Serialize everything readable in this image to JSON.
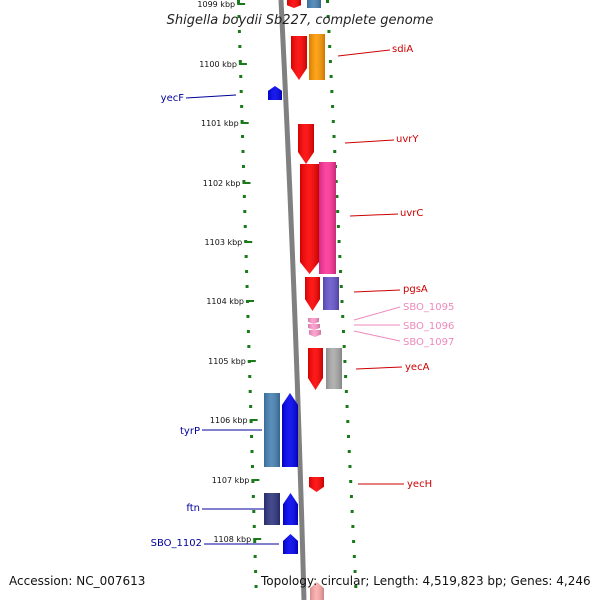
{
  "title": "Shigella boydii Sb227, complete genome",
  "accession": "Accession: NC_007613",
  "topology": "Topology: circular; Length: 4,519,823 bp; Genes: 4,246",
  "colors": {
    "backbone": "#808080",
    "tick": "#1a7a1a",
    "red": "#ff0000",
    "orange": "#ff9900",
    "pink": "#ff3399",
    "lightpink": "#ff99cc",
    "purple": "#6655cc",
    "gray": "#aaaaaa",
    "blue": "#0000ee",
    "steelblue": "#4682b4",
    "navy": "#2e3580",
    "redLabel": "#cc0000",
    "blueLabel": "#000099",
    "pinkLabel": "#ee88bb"
  },
  "kbp_ticks": [
    "1099 kbp",
    "1100 kbp",
    "1101 kbp",
    "1102 kbp",
    "1103 kbp",
    "1104 kbp",
    "1105 kbp",
    "1106 kbp",
    "1107 kbp",
    "1108 kbp"
  ],
  "genes": [
    {
      "name": "sdiA",
      "strand": "+",
      "color": "red"
    },
    {
      "name": "yecF",
      "strand": "-",
      "color": "blue"
    },
    {
      "name": "uvrY",
      "strand": "+",
      "color": "red"
    },
    {
      "name": "uvrC",
      "strand": "+",
      "color": "red"
    },
    {
      "name": "pgsA",
      "strand": "+",
      "color": "red"
    },
    {
      "name": "SBO_1095",
      "strand": "+",
      "color": "lightpink"
    },
    {
      "name": "SBO_1096",
      "strand": "+",
      "color": "lightpink"
    },
    {
      "name": "SBO_1097",
      "strand": "+",
      "color": "lightpink"
    },
    {
      "name": "yecA",
      "strand": "+",
      "color": "red"
    },
    {
      "name": "tyrP",
      "strand": "-",
      "color": "blue"
    },
    {
      "name": "yecH",
      "strand": "+",
      "color": "red"
    },
    {
      "name": "ftn",
      "strand": "-",
      "color": "blue"
    },
    {
      "name": "SBO_1102",
      "strand": "-",
      "color": "blue"
    }
  ]
}
